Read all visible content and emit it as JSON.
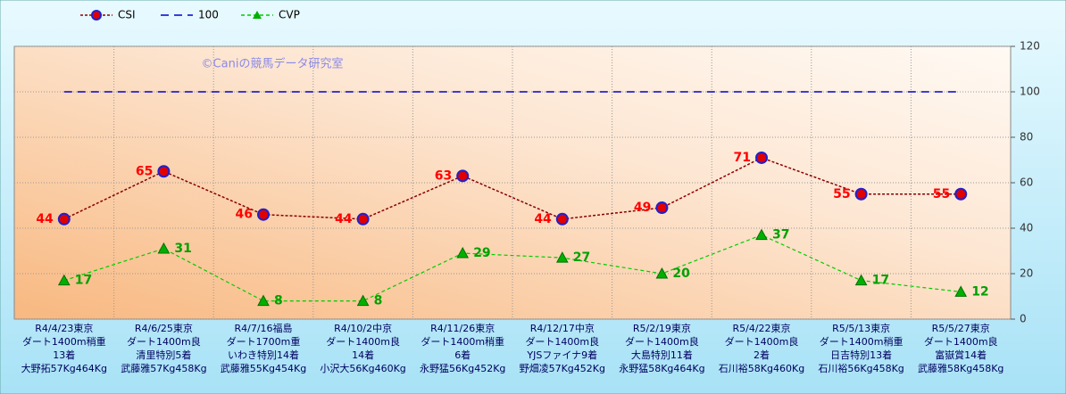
{
  "chart_data": {
    "type": "line",
    "annotation": "©Caniの競馬データ研究室",
    "categories": [
      [
        "R4/4/23東京",
        "ダート1400m稍重",
        "13着",
        "大野拓57Kg464Kg"
      ],
      [
        "R4/6/25東京",
        "ダート1400m良",
        "清里特別5着",
        "武藤雅57Kg458Kg"
      ],
      [
        "R4/7/16福島",
        "ダート1700m重",
        "いわき特別14着",
        "武藤雅55Kg454Kg"
      ],
      [
        "R4/10/2中京",
        "ダート1400m良",
        "14着",
        "小沢大56Kg460Kg"
      ],
      [
        "R4/11/26東京",
        "ダート1400m稍重",
        "6着",
        "永野猛56Kg452Kg"
      ],
      [
        "R4/12/17中京",
        "ダート1400m良",
        "YJSファイナ9着",
        "野畑凌57Kg452Kg"
      ],
      [
        "R5/2/19東京",
        "ダート1400m良",
        "大島特別11着",
        "永野猛58Kg464Kg"
      ],
      [
        "R5/4/22東京",
        "ダート1400m良",
        "2着",
        "石川裕58Kg460Kg"
      ],
      [
        "R5/5/13東京",
        "ダート1400m稍重",
        "日吉特別13着",
        "石川裕56Kg458Kg"
      ],
      [
        "R5/5/27東京",
        "ダート1400m良",
        "富嶽賞14着",
        "武藤雅58Kg458Kg"
      ]
    ],
    "series": [
      {
        "name": "CSI",
        "color": "#8b0000",
        "values": [
          44,
          65,
          46,
          44,
          63,
          44,
          49,
          71,
          55,
          55
        ]
      },
      {
        "name": "100",
        "color": "#0000cc",
        "values": [
          100,
          100,
          100,
          100,
          100,
          100,
          100,
          100,
          100,
          100
        ]
      },
      {
        "name": "CVP",
        "color": "#00cc00",
        "values": [
          17,
          31,
          8,
          8,
          29,
          27,
          20,
          37,
          17,
          12
        ]
      }
    ],
    "ylim": [
      0,
      120
    ],
    "yticks": [
      0,
      20,
      40,
      60,
      80,
      100,
      120
    ],
    "grid": true
  }
}
